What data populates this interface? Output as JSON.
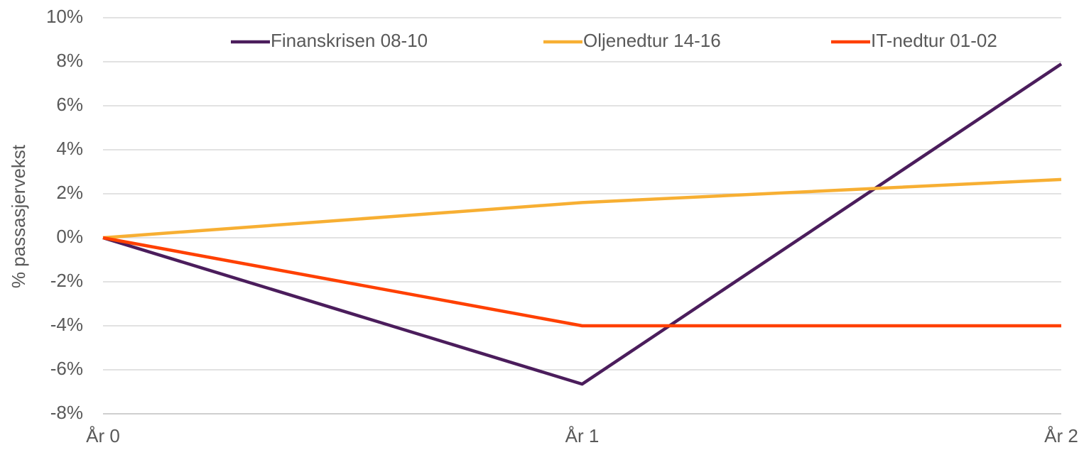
{
  "chart_data": {
    "type": "line",
    "ylabel": "% passasjervekst",
    "categories": [
      "År 0",
      "År 1",
      "År 2"
    ],
    "series": [
      {
        "name": "Finanskrisen 08-10",
        "color": "#4b1d5c",
        "values": [
          0,
          -6.65,
          7.9
        ]
      },
      {
        "name": "Oljenedtur 14-16",
        "color": "#f7af33",
        "values": [
          0,
          1.6,
          2.65
        ]
      },
      {
        "name": "IT-nedtur 01-02",
        "color": "#ff4000",
        "values": [
          0,
          -4,
          -4
        ]
      }
    ],
    "ylim": [
      -8,
      10
    ],
    "yticks": [
      {
        "value": -8,
        "label": "-8%"
      },
      {
        "value": -6,
        "label": "-6%"
      },
      {
        "value": -4,
        "label": "-4%"
      },
      {
        "value": -2,
        "label": "-2%"
      },
      {
        "value": 0,
        "label": "0%"
      },
      {
        "value": 2,
        "label": "2%"
      },
      {
        "value": 4,
        "label": "4%"
      },
      {
        "value": 6,
        "label": "6%"
      },
      {
        "value": 8,
        "label": "8%"
      },
      {
        "value": 10,
        "label": "10%"
      }
    ],
    "grid": true,
    "legend": "top"
  }
}
